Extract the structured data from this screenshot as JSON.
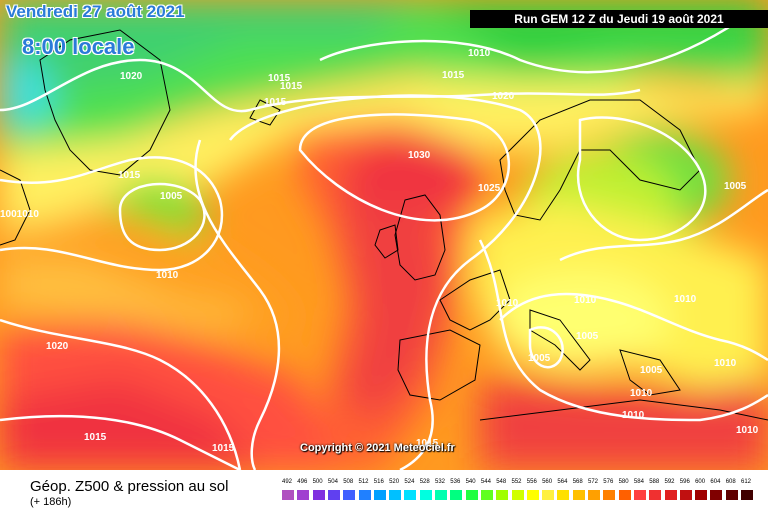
{
  "header": {
    "date": "Vendredi 27 août 2021",
    "time": "8:00 locale",
    "run": "Run GEM 12 Z du Jeudi 19 août 2021"
  },
  "copyright": "Copyright © 2021 Meteociel.fr",
  "footer": {
    "title": "Géop. Z500 & pression au sol",
    "subtitle": "(+ 186h)"
  },
  "scale": {
    "labels": [
      "492",
      "496",
      "500",
      "504",
      "508",
      "512",
      "516",
      "520",
      "524",
      "528",
      "532",
      "536",
      "540",
      "544",
      "548",
      "552",
      "556",
      "560",
      "564",
      "568",
      "572",
      "576",
      "580",
      "584",
      "588",
      "592",
      "596",
      "600",
      "604",
      "608",
      "612"
    ],
    "colors": [
      "#b050c0",
      "#a040d0",
      "#8030e0",
      "#6040f0",
      "#4060ff",
      "#2080ff",
      "#00a0ff",
      "#00c0ff",
      "#00e0ff",
      "#00ffe0",
      "#00ffb0",
      "#00ff80",
      "#20ff40",
      "#60ff20",
      "#a0ff00",
      "#d0ff00",
      "#ffff00",
      "#fff040",
      "#ffe000",
      "#ffc000",
      "#ffa000",
      "#ff8000",
      "#ff6000",
      "#ff4040",
      "#f03030",
      "#e02020",
      "#c01010",
      "#a00000",
      "#800000",
      "#600000",
      "#400000"
    ]
  },
  "isobars": [
    "1030",
    "1025",
    "1020",
    "1020",
    "1020",
    "1015",
    "1015",
    "1015",
    "1015",
    "1015",
    "1015",
    "1015",
    "1015",
    "1010",
    "1010",
    "1010",
    "1010",
    "1010",
    "1010",
    "1010",
    "1010",
    "1010",
    "1005",
    "1005",
    "1005",
    "1005",
    "1005",
    "1001010"
  ]
}
